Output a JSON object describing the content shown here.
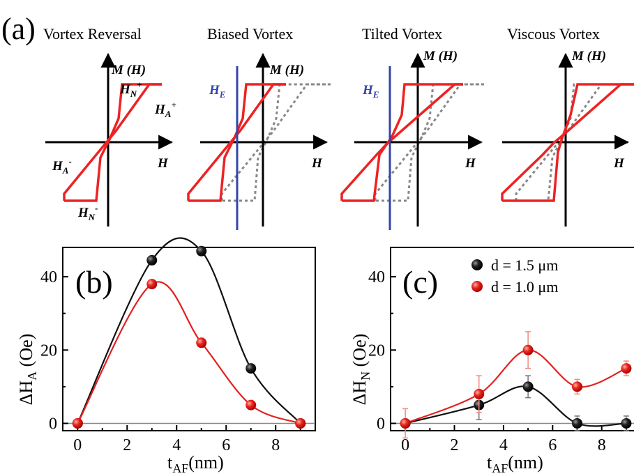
{
  "figure": {
    "panel_a_label": "(a)",
    "panel_b_label": "(b)",
    "panel_c_label": "(c)"
  },
  "loops": {
    "titles": [
      "Vortex Reversal",
      "Biased Vortex",
      "Tilted Vortex",
      "Viscous Vortex"
    ],
    "axis_m": "M (H)",
    "axis_h": "H",
    "he_label": "H",
    "he_sub": "E",
    "hn_plus": "H",
    "hn_plus_sub": "N",
    "hn_plus_sup": "+",
    "ha_plus": "H",
    "ha_plus_sub": "A",
    "ha_plus_sup": "+",
    "ha_minus": "H",
    "ha_minus_sub": "A",
    "ha_minus_sup": "-",
    "hn_minus": "H",
    "hn_minus_sub": "N",
    "hn_minus_sup": "-",
    "colors": {
      "loop": "#ee2222",
      "reference": "#888888",
      "bias_line": "#3344aa"
    }
  },
  "chart_data": [
    {
      "type": "line",
      "panel": "(b)",
      "x_tick_labels": [
        "0",
        "2",
        "4",
        "6",
        "8"
      ],
      "y_tick_labels": [
        "0",
        "20",
        "40"
      ],
      "xlim": [
        -0.6,
        9.6
      ],
      "ylim": [
        -2,
        48
      ],
      "xlabel_main": "t",
      "xlabel_sub": "AF",
      "xlabel_rest": "(nm)",
      "ylabel_main": "ΔH",
      "ylabel_sub": "A",
      "ylabel_rest": " (Oe)",
      "series": [
        {
          "color": "#111111",
          "x": [
            0,
            3,
            5,
            7,
            9
          ],
          "y": [
            0,
            44.5,
            47,
            15,
            0
          ]
        },
        {
          "color": "#e32020",
          "x": [
            0,
            3,
            5,
            7,
            9
          ],
          "y": [
            0,
            38,
            22,
            5,
            0
          ]
        }
      ]
    },
    {
      "type": "line",
      "panel": "(c)",
      "x_tick_labels": [
        "0",
        "2",
        "4",
        "6",
        "8"
      ],
      "y_tick_labels": [
        "0",
        "20",
        "40"
      ],
      "xlim": [
        -0.6,
        9.4
      ],
      "ylim": [
        -2,
        48
      ],
      "xlabel_main": "t",
      "xlabel_sub": "AF",
      "xlabel_rest": "(nm)",
      "ylabel_main": "ΔH",
      "ylabel_sub": "N",
      "ylabel_rest": " (Oe)",
      "legend": [
        "d = 1.5 μm",
        "d = 1.0 μm"
      ],
      "series": [
        {
          "name": "d = 1.5 μm",
          "color": "#111111",
          "x": [
            0,
            3,
            5,
            7,
            9
          ],
          "y": [
            0,
            5,
            10,
            0,
            0
          ],
          "err": [
            0,
            4,
            3,
            2,
            2
          ]
        },
        {
          "name": "d = 1.0 μm",
          "color": "#e32020",
          "x": [
            0,
            3,
            5,
            7,
            9
          ],
          "y": [
            0,
            8,
            20,
            10,
            15
          ],
          "err": [
            4,
            5,
            5,
            2,
            2
          ]
        }
      ]
    }
  ]
}
